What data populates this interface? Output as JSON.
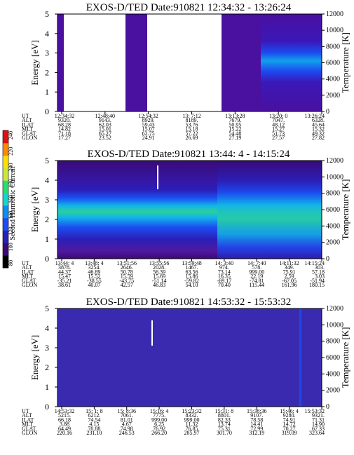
{
  "chart_data": [
    {
      "type": "heatmap",
      "title": "EXOS-D/TED   Date:910821   12:34:32 - 13:26:24",
      "ylabel": "Energy [eV]",
      "ylabel_right": "Temperature [K]",
      "ylim": [
        0,
        5.0
      ],
      "yticks": [
        "0",
        "1",
        "2",
        "3",
        "4",
        "5"
      ],
      "ylim_right": [
        0,
        12000
      ],
      "yticks_right": [
        "0",
        "2000",
        "4000",
        "6000",
        "8000",
        "10000",
        "12000"
      ],
      "time_range": [
        "12:34:32",
        "13:26:24"
      ],
      "data_gaps": [
        [
          "12:37:00",
          "12:48:40"
        ],
        [
          "12:54:32",
          "13:12:00"
        ]
      ],
      "orbit_table": {
        "row_labels": [
          "UT",
          "ALT",
          "ILAT",
          "MLT",
          "GLAT",
          "GLON"
        ],
        "columns": [
          [
            "12:34:32",
            "9320.",
            "68.28",
            "14.82",
            "71.18",
            "17.27"
          ],
          [
            "12:48:40",
            "9143.",
            "62.03",
            "15.01",
            "65.27",
            "23.52"
          ],
          [
            "12:54:32",
            "8929.",
            "59.43",
            "15.07",
            "62.75",
            "24.91"
          ],
          [
            "13: 7:12",
            "8189.",
            "53.76",
            "15.18",
            "57.22",
            "26.69"
          ],
          [
            "13:13:28",
            "7679.",
            "50.95",
            "15.22",
            "54.48",
            "27.19"
          ],
          [
            "13:20: 0",
            "7047.",
            "48.12",
            "15.27",
            "51.73",
            "27.57"
          ],
          [
            "13:26:24",
            "6328.",
            "45.64",
            "15.32",
            "49.32",
            "27.82"
          ]
        ]
      }
    },
    {
      "type": "heatmap",
      "title": "EXOS-D/TED   Date:910821   13:44: 4 - 14:15:24",
      "ylabel": "Energy [eV]",
      "ylabel_right": "Temperature [K]",
      "ylim": [
        0,
        5.0
      ],
      "yticks": [
        "0",
        "1",
        "2",
        "3",
        "4",
        "5"
      ],
      "ylim_right": [
        0,
        12000
      ],
      "yticks_right": [
        "0",
        "2000",
        "4000",
        "6000",
        "8000",
        "10000",
        "12000"
      ],
      "time_range": [
        "13:44: 4",
        "14:15:24"
      ],
      "orbit_table": {
        "row_labels": [
          "UT",
          "ALT",
          "ILAT",
          "MLT",
          "GLAT",
          "GLON"
        ],
        "columns": [
          [
            "13:44: 4",
            "3878.",
            "44.37",
            "15.47",
            "-35.21",
            "38.61"
          ],
          [
            "13:48: 4",
            "3254.",
            "46.89",
            "15.52",
            "-38.55",
            "40.07"
          ],
          [
            "13:51:56",
            "2646.",
            "50.78",
            "15.59",
            "-43.75",
            "42.57"
          ],
          [
            "13:55:56",
            "2028.",
            "56.39",
            "15.69",
            "-51.14",
            "46.83"
          ],
          [
            "13:59:48",
            "1467.",
            "63.56",
            "15.86",
            "-59.82",
            "54.10"
          ],
          [
            "14: 3:40",
            "974.",
            "73.14",
            "16.35",
            "-69.17",
            "70.40"
          ],
          [
            "14: 7:40",
            "578.",
            "999.00",
            "22.19",
            "-74.81",
            "115.44"
          ],
          [
            "14:11:32",
            "349.",
            "75.91",
            "2.59",
            "-67.05",
            "161.96"
          ],
          [
            "14:15:24",
            "303.",
            "57.18",
            "3.03",
            "-51.94",
            "180.15"
          ]
        ]
      }
    },
    {
      "type": "heatmap",
      "title": "EXOS-D/TED   Date:910821   14:53:32 - 15:53:32",
      "ylabel": "Energy [eV]",
      "ylabel_right": "Temperature [K]",
      "ylim": [
        0,
        5.0
      ],
      "yticks": [
        "0",
        "1",
        "2",
        "3",
        "4",
        "5"
      ],
      "ylim_right": [
        0,
        12000
      ],
      "yticks_right": [
        "0",
        "2000",
        "4000",
        "6000",
        "8000",
        "10000",
        "12000"
      ],
      "time_range": [
        "14:53:32",
        "15:53:32"
      ],
      "orbit_table": {
        "row_labels": [
          "UT",
          "ALT",
          "ILAT",
          "MLT",
          "GLAT",
          "GLON"
        ],
        "columns": [
          [
            "14:53:32",
            "5215.",
            "66.18",
            "3.88",
            "64.49",
            "220.16"
          ],
          [
            "15: 1: 8",
            "6212.",
            "74.54",
            "4.15",
            "70.88",
            "231.10"
          ],
          [
            "15: 8:36",
            "7061.",
            "81.01",
            "4.67",
            "74.98",
            "246.53"
          ],
          [
            "15:16: 4",
            "7775.",
            "999.00",
            "6.25",
            "76.92",
            "266.20"
          ],
          [
            "15:23:32",
            "8332.",
            "999.00",
            "11.32",
            "76.85",
            "285.97"
          ],
          [
            "15:31: 8",
            "8801.",
            "82.33",
            "13.74",
            "75.31",
            "301.70"
          ],
          [
            "15:38:36",
            "9107.",
            "78.58",
            "14.41",
            "72.99",
            "312.19"
          ],
          [
            "15:46: 4",
            "9280.",
            "74.91",
            "14.72",
            "70.27",
            "319.09"
          ],
          [
            "15:53:32",
            "9321.",
            "71.31",
            "14.90",
            "67.33",
            "323.64"
          ]
        ]
      }
    }
  ],
  "colorbar": {
    "label": "Second Harmonic Current",
    "ticks": [
      "80",
      "100",
      "120",
      "140",
      "160",
      "180",
      "200",
      "220",
      "240"
    ],
    "colors": [
      "#000000",
      "#3a0a78",
      "#2a1fb8",
      "#1c4df2",
      "#0a8ff5",
      "#10d8d0",
      "#28e070",
      "#c8e83a",
      "#ffe000",
      "#ff8800",
      "#e01010"
    ]
  }
}
